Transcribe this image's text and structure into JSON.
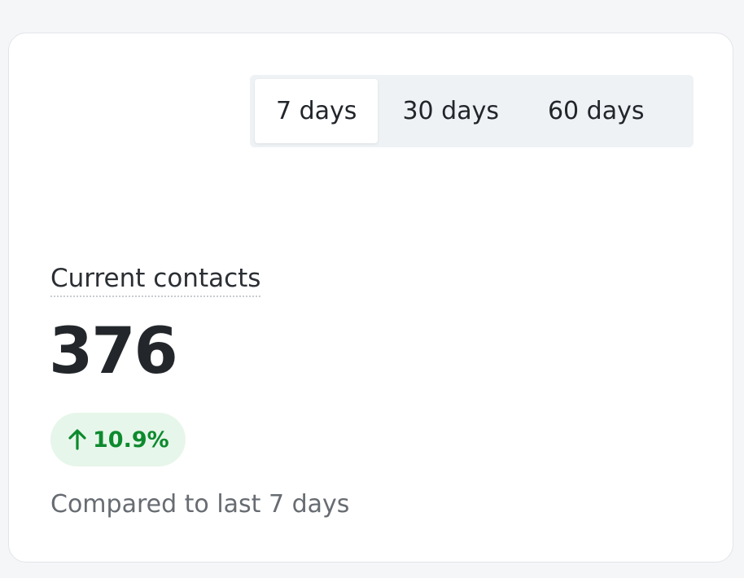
{
  "period_tabs": {
    "options": [
      "7 days",
      "30 days",
      "60 days"
    ],
    "selected": 0
  },
  "metric": {
    "label": "Current contacts",
    "value": 376,
    "change": "10.9%",
    "comparison": "Compared to last 7 days"
  }
}
